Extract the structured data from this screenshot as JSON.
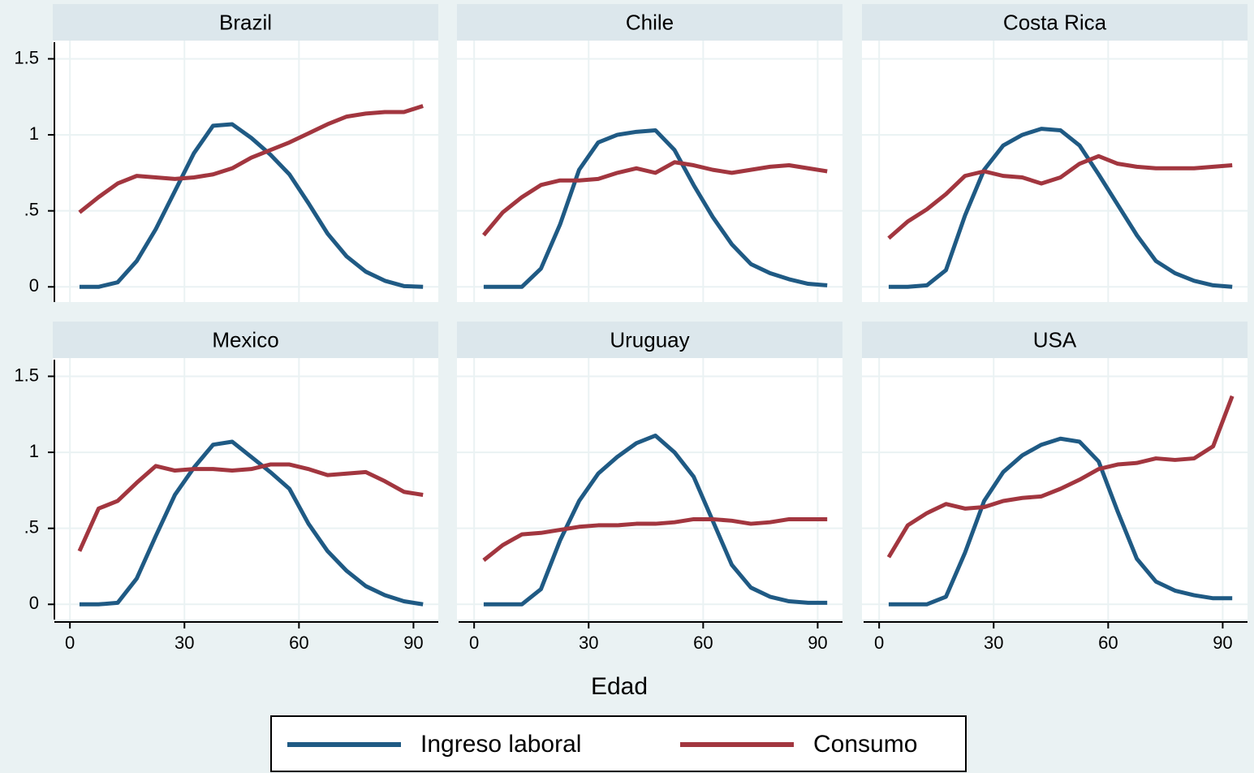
{
  "chart_data": {
    "type": "line",
    "x_label": "Edad",
    "x": [
      2.5,
      7.5,
      12.5,
      17.5,
      22.5,
      27.5,
      32.5,
      37.5,
      42.5,
      47.5,
      52.5,
      57.5,
      62.5,
      67.5,
      72.5,
      77.5,
      82.5,
      87.5,
      92.5
    ],
    "xlim": [
      -4.5,
      96.5
    ],
    "xticks": [
      0,
      30,
      60,
      90
    ],
    "ylim": [
      -0.1,
      1.62
    ],
    "yticks": [
      0,
      {
        "value": 0.5,
        "label": ".5"
      },
      1,
      1.5
    ],
    "grid": true,
    "legend": "bottom",
    "series": [
      {
        "name": "Ingreso laboral",
        "color": "#1f5a84"
      },
      {
        "name": "Consumo",
        "color": "#a2363f"
      }
    ],
    "panels": [
      {
        "title": "Brazil",
        "series": [
          {
            "values": [
              0,
              0,
              0.03,
              0.17,
              0.38,
              0.63,
              0.88,
              1.06,
              1.07,
              0.98,
              0.87,
              0.74,
              0.55,
              0.35,
              0.2,
              0.1,
              0.04,
              0.005,
              0
            ]
          },
          {
            "values": [
              0.49,
              0.59,
              0.68,
              0.73,
              0.72,
              0.71,
              0.72,
              0.74,
              0.78,
              0.85,
              0.9,
              0.95,
              1.01,
              1.07,
              1.12,
              1.14,
              1.15,
              1.15,
              1.19
            ]
          }
        ]
      },
      {
        "title": "Chile",
        "series": [
          {
            "values": [
              0,
              0,
              0,
              0.12,
              0.41,
              0.77,
              0.95,
              1.0,
              1.02,
              1.03,
              0.9,
              0.67,
              0.46,
              0.28,
              0.15,
              0.09,
              0.05,
              0.02,
              0.01
            ]
          },
          {
            "values": [
              0.34,
              0.49,
              0.59,
              0.67,
              0.7,
              0.7,
              0.71,
              0.75,
              0.78,
              0.75,
              0.82,
              0.8,
              0.77,
              0.75,
              0.77,
              0.79,
              0.8,
              0.78,
              0.76
            ]
          }
        ]
      },
      {
        "title": "Costa Rica",
        "series": [
          {
            "values": [
              0,
              0,
              0.01,
              0.11,
              0.47,
              0.77,
              0.93,
              1.0,
              1.04,
              1.03,
              0.93,
              0.74,
              0.54,
              0.34,
              0.17,
              0.09,
              0.04,
              0.01,
              0
            ]
          },
          {
            "values": [
              0.32,
              0.43,
              0.51,
              0.61,
              0.73,
              0.76,
              0.73,
              0.72,
              0.68,
              0.72,
              0.81,
              0.86,
              0.81,
              0.79,
              0.78,
              0.78,
              0.78,
              0.79,
              0.8
            ]
          }
        ]
      },
      {
        "title": "Mexico",
        "series": [
          {
            "values": [
              0,
              0,
              0.01,
              0.17,
              0.45,
              0.72,
              0.9,
              1.05,
              1.07,
              0.97,
              0.87,
              0.76,
              0.53,
              0.35,
              0.22,
              0.12,
              0.06,
              0.02,
              0
            ]
          },
          {
            "values": [
              0.35,
              0.63,
              0.68,
              0.8,
              0.91,
              0.88,
              0.89,
              0.89,
              0.88,
              0.89,
              0.92,
              0.92,
              0.89,
              0.85,
              0.86,
              0.87,
              0.81,
              0.74,
              0.72
            ]
          }
        ]
      },
      {
        "title": "Uruguay",
        "series": [
          {
            "values": [
              0,
              0,
              0,
              0.1,
              0.42,
              0.68,
              0.86,
              0.97,
              1.06,
              1.11,
              1.0,
              0.84,
              0.55,
              0.26,
              0.11,
              0.05,
              0.02,
              0.01,
              0.01
            ]
          },
          {
            "values": [
              0.29,
              0.39,
              0.46,
              0.47,
              0.49,
              0.51,
              0.52,
              0.52,
              0.53,
              0.53,
              0.54,
              0.56,
              0.56,
              0.55,
              0.53,
              0.54,
              0.56,
              0.56,
              0.56
            ]
          }
        ]
      },
      {
        "title": "USA",
        "series": [
          {
            "values": [
              0,
              0,
              0,
              0.05,
              0.34,
              0.68,
              0.87,
              0.98,
              1.05,
              1.09,
              1.07,
              0.94,
              0.61,
              0.3,
              0.15,
              0.09,
              0.06,
              0.04,
              0.04
            ]
          },
          {
            "values": [
              0.31,
              0.52,
              0.6,
              0.66,
              0.63,
              0.64,
              0.68,
              0.7,
              0.71,
              0.76,
              0.82,
              0.89,
              0.92,
              0.93,
              0.96,
              0.95,
              0.96,
              1.04,
              1.37
            ]
          }
        ]
      }
    ]
  }
}
